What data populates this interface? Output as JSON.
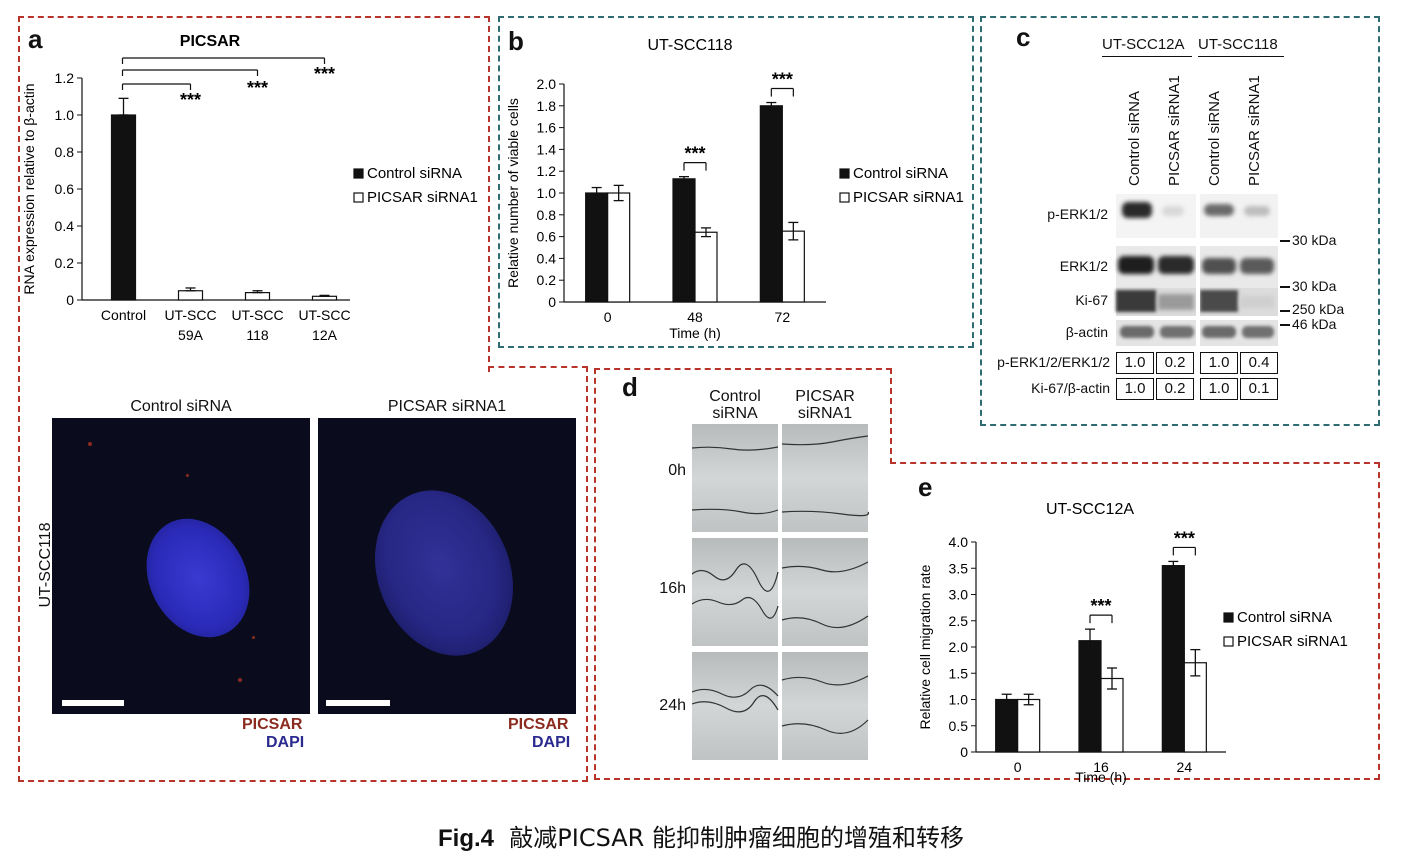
{
  "caption": {
    "label": "Fig.4",
    "text": "敲减PICSAR 能抑制肿瘤细胞的增殖和转移"
  },
  "panel_a": {
    "letter": "a",
    "chart_title": "PICSAR",
    "ylabel": "RNA expression relative to β-actin",
    "legend": [
      "Control siRNA",
      "PICSAR siRNA1"
    ],
    "significance": "***",
    "images": {
      "col1": "Control siRNA",
      "col2": "PICSAR siRNA1",
      "row_label": "UT-SCC118",
      "channel1": "PICSAR",
      "channel2": "DAPI",
      "colors": {
        "picsar": "#8b2a1e",
        "dapi": "#2b2a8f"
      }
    }
  },
  "panel_b": {
    "letter": "b",
    "legend": [
      "Control siRNA",
      "PICSAR siRNA1"
    ],
    "significance": "***"
  },
  "panel_c": {
    "letter": "c",
    "cell_lines": [
      "UT-SCC12A",
      "UT-SCC118"
    ],
    "lanes": [
      "Control siRNA",
      "PICSAR siRNA1",
      "Control siRNA",
      "PICSAR siRNA1"
    ],
    "bands": [
      "p-ERK1/2",
      "ERK1/2",
      "Ki-67",
      "β-actin"
    ],
    "markers": [
      "30 kDa",
      "30 kDa",
      "250 kDa",
      "46 kDa"
    ],
    "ratios": [
      {
        "label": "p-ERK1/2/ERK1/2",
        "values": [
          "1.0",
          "0.2",
          "1.0",
          "0.4"
        ]
      },
      {
        "label": "Ki-67/β-actin",
        "values": [
          "1.0",
          "0.2",
          "1.0",
          "0.1"
        ]
      }
    ]
  },
  "panel_d": {
    "letter": "d",
    "col1": [
      "Control",
      "siRNA"
    ],
    "col2": [
      "PICSAR",
      "siRNA1"
    ],
    "rows": [
      "0h",
      "16h",
      "24h"
    ]
  },
  "panel_e": {
    "letter": "e",
    "legend": [
      "Control siRNA",
      "PICSAR siRNA1"
    ],
    "significance": "***"
  },
  "chart_data": [
    {
      "type": "bar",
      "title": "PICSAR",
      "categories": [
        "Control",
        "UT-SCC 59A",
        "UT-SCC 118",
        "UT-SCC 12A"
      ],
      "category_lines": [
        [
          "Control"
        ],
        [
          "UT-SCC",
          "59A"
        ],
        [
          "UT-SCC",
          "118"
        ],
        [
          "UT-SCC",
          "12A"
        ]
      ],
      "values": [
        1.0,
        0.05,
        0.04,
        0.02
      ],
      "errors": [
        0.09,
        0.015,
        0.01,
        0.005
      ],
      "fills": [
        "#111111",
        "#ffffff",
        "#ffffff",
        "#ffffff"
      ],
      "xlabel": "",
      "ylabel": "RNA expression relative to β-actin",
      "ylim": [
        0,
        1.2
      ],
      "yticks": [
        "0",
        "0.2",
        "0.4",
        "0.6",
        "0.8",
        "1.0",
        "1.2"
      ],
      "legend": [
        "Control siRNA",
        "PICSAR siRNA1"
      ],
      "grid": false
    },
    {
      "type": "bar",
      "title": "UT-SCC118",
      "categories": [
        "0",
        "48",
        "72"
      ],
      "series": [
        {
          "name": "Control siRNA",
          "values": [
            1.0,
            1.13,
            1.8
          ],
          "errors": [
            0.05,
            0.02,
            0.03
          ],
          "color": "#111111"
        },
        {
          "name": "PICSAR siRNA1",
          "values": [
            1.0,
            0.64,
            0.65
          ],
          "errors": [
            0.07,
            0.04,
            0.08
          ],
          "color": "#ffffff"
        }
      ],
      "xlabel": "Time (h)",
      "ylabel": "Relative number of viable cells",
      "ylim": [
        0,
        2.0
      ],
      "yticks": [
        "0",
        "0.2",
        "0.4",
        "0.6",
        "0.8",
        "1.0",
        "1.2",
        "1.4",
        "1.6",
        "1.8",
        "2.0"
      ],
      "significance": [
        "",
        "***",
        "***"
      ],
      "legend_position": "right",
      "grid": false
    },
    {
      "type": "bar",
      "title": "UT-SCC12A",
      "categories": [
        "0",
        "16",
        "24"
      ],
      "series": [
        {
          "name": "Control siRNA",
          "values": [
            1.0,
            2.12,
            3.55
          ],
          "errors": [
            0.1,
            0.22,
            0.08
          ],
          "color": "#111111"
        },
        {
          "name": "PICSAR siRNA1",
          "values": [
            1.0,
            1.4,
            1.7
          ],
          "errors": [
            0.1,
            0.2,
            0.25
          ],
          "color": "#ffffff"
        }
      ],
      "xlabel": "Time (h)",
      "ylabel": "Relative cell migration rate",
      "ylim": [
        0,
        4.0
      ],
      "yticks": [
        "0",
        "0.5",
        "1.0",
        "1.5",
        "2.0",
        "2.5",
        "3.0",
        "3.5",
        "4.0"
      ],
      "significance": [
        "",
        "***",
        "***"
      ],
      "legend_position": "right",
      "grid": false
    }
  ]
}
